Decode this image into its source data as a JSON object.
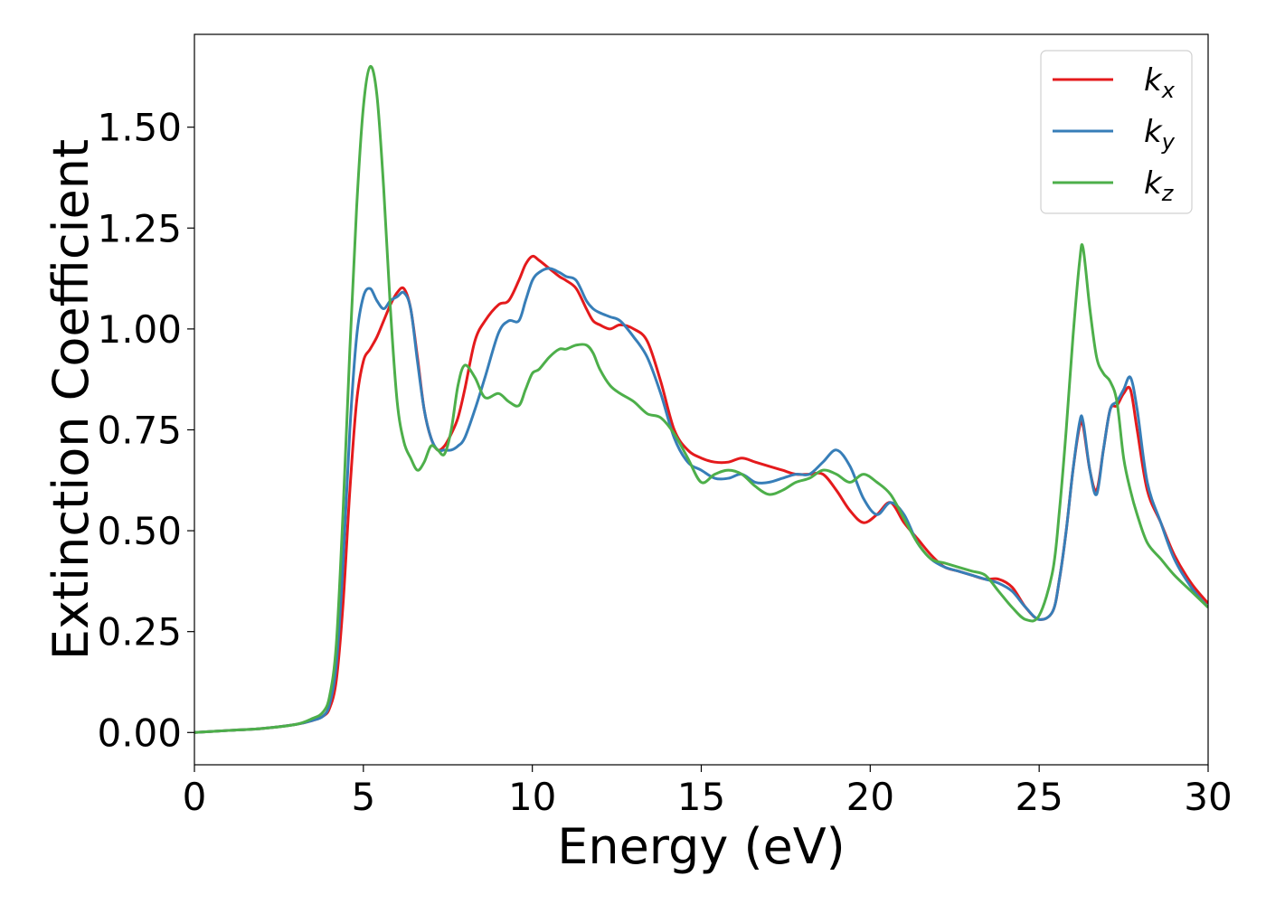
{
  "chart_data": {
    "type": "line",
    "title": "",
    "xlabel": "Energy (eV)",
    "ylabel": "Extinction Coefficient",
    "xlim": [
      0,
      30
    ],
    "ylim": [
      -0.08,
      1.73
    ],
    "xticks": [
      0,
      5,
      10,
      15,
      20,
      25,
      30
    ],
    "xtick_labels": [
      "0",
      "5",
      "10",
      "15",
      "20",
      "25",
      "30"
    ],
    "yticks": [
      0.0,
      0.25,
      0.5,
      0.75,
      1.0,
      1.25,
      1.5
    ],
    "ytick_labels": [
      "0.00",
      "0.25",
      "0.50",
      "0.75",
      "1.00",
      "1.25",
      "1.50"
    ],
    "grid": false,
    "legend_position": "top-right",
    "series": [
      {
        "name": "kx",
        "name_base": "k",
        "name_sub": "x",
        "color": "#e41a1c",
        "x": [
          0,
          1,
          2,
          3,
          3.5,
          3.8,
          4.0,
          4.2,
          4.4,
          4.6,
          4.8,
          5.0,
          5.2,
          5.4,
          5.6,
          5.8,
          6.0,
          6.2,
          6.4,
          6.6,
          6.8,
          7.0,
          7.2,
          7.4,
          7.6,
          7.8,
          8.0,
          8.3,
          8.6,
          9.0,
          9.3,
          9.6,
          9.8,
          10.0,
          10.2,
          10.5,
          10.8,
          11.0,
          11.3,
          11.6,
          11.8,
          12.0,
          12.3,
          12.6,
          13.0,
          13.4,
          13.8,
          14.2,
          14.6,
          15.0,
          15.4,
          15.8,
          16.2,
          16.6,
          17.0,
          17.4,
          17.8,
          18.2,
          18.6,
          19.0,
          19.4,
          19.8,
          20.2,
          20.6,
          21.0,
          21.4,
          21.8,
          22.2,
          22.6,
          23.0,
          23.4,
          23.8,
          24.2,
          24.6,
          25.0,
          25.4,
          25.6,
          25.8,
          26.0,
          26.2,
          26.3,
          26.5,
          26.7,
          26.9,
          27.1,
          27.3,
          27.5,
          27.7,
          27.9,
          28.2,
          28.6,
          29.0,
          29.5,
          30.0
        ],
        "values": [
          0.0,
          0.005,
          0.01,
          0.02,
          0.03,
          0.04,
          0.06,
          0.13,
          0.32,
          0.6,
          0.82,
          0.92,
          0.95,
          0.98,
          1.02,
          1.06,
          1.09,
          1.1,
          1.05,
          0.93,
          0.8,
          0.73,
          0.7,
          0.71,
          0.74,
          0.78,
          0.85,
          0.97,
          1.02,
          1.06,
          1.07,
          1.12,
          1.16,
          1.18,
          1.17,
          1.15,
          1.13,
          1.12,
          1.1,
          1.05,
          1.02,
          1.01,
          1.0,
          1.01,
          1.0,
          0.97,
          0.87,
          0.75,
          0.7,
          0.68,
          0.67,
          0.67,
          0.68,
          0.67,
          0.66,
          0.65,
          0.64,
          0.64,
          0.64,
          0.6,
          0.55,
          0.52,
          0.54,
          0.57,
          0.52,
          0.48,
          0.44,
          0.41,
          0.4,
          0.39,
          0.38,
          0.38,
          0.36,
          0.31,
          0.28,
          0.3,
          0.38,
          0.5,
          0.65,
          0.76,
          0.76,
          0.65,
          0.6,
          0.7,
          0.8,
          0.81,
          0.84,
          0.85,
          0.75,
          0.6,
          0.52,
          0.44,
          0.37,
          0.32
        ]
      },
      {
        "name": "ky",
        "name_base": "k",
        "name_sub": "y",
        "color": "#377eb8",
        "x": [
          0,
          1,
          2,
          3,
          3.5,
          3.8,
          4.0,
          4.2,
          4.4,
          4.6,
          4.8,
          5.0,
          5.2,
          5.4,
          5.6,
          5.8,
          6.0,
          6.2,
          6.4,
          6.6,
          6.8,
          7.0,
          7.2,
          7.4,
          7.6,
          7.8,
          8.0,
          8.3,
          8.6,
          9.0,
          9.3,
          9.6,
          9.8,
          10.0,
          10.2,
          10.5,
          10.8,
          11.0,
          11.3,
          11.6,
          11.8,
          12.0,
          12.3,
          12.6,
          13.0,
          13.4,
          13.8,
          14.2,
          14.6,
          15.0,
          15.4,
          15.8,
          16.2,
          16.6,
          17.0,
          17.4,
          17.8,
          18.2,
          18.6,
          19.0,
          19.4,
          19.8,
          20.2,
          20.6,
          21.0,
          21.4,
          21.8,
          22.2,
          22.6,
          23.0,
          23.4,
          23.8,
          24.2,
          24.6,
          25.0,
          25.4,
          25.6,
          25.8,
          26.0,
          26.2,
          26.3,
          26.5,
          26.7,
          26.9,
          27.1,
          27.3,
          27.5,
          27.7,
          27.9,
          28.2,
          28.6,
          29.0,
          29.5,
          30.0
        ],
        "values": [
          0.0,
          0.005,
          0.01,
          0.02,
          0.03,
          0.04,
          0.07,
          0.17,
          0.42,
          0.75,
          0.98,
          1.08,
          1.1,
          1.07,
          1.05,
          1.07,
          1.08,
          1.09,
          1.05,
          0.92,
          0.8,
          0.73,
          0.7,
          0.7,
          0.7,
          0.71,
          0.73,
          0.8,
          0.88,
          0.99,
          1.02,
          1.02,
          1.07,
          1.12,
          1.14,
          1.15,
          1.14,
          1.13,
          1.12,
          1.07,
          1.05,
          1.04,
          1.03,
          1.02,
          0.98,
          0.93,
          0.84,
          0.73,
          0.67,
          0.65,
          0.63,
          0.63,
          0.64,
          0.62,
          0.62,
          0.63,
          0.64,
          0.64,
          0.67,
          0.7,
          0.66,
          0.58,
          0.54,
          0.57,
          0.54,
          0.47,
          0.43,
          0.41,
          0.4,
          0.39,
          0.38,
          0.37,
          0.35,
          0.31,
          0.28,
          0.3,
          0.38,
          0.5,
          0.65,
          0.77,
          0.77,
          0.65,
          0.59,
          0.7,
          0.8,
          0.82,
          0.85,
          0.88,
          0.8,
          0.62,
          0.52,
          0.43,
          0.36,
          0.31
        ]
      },
      {
        "name": "kz",
        "name_base": "k",
        "name_sub": "z",
        "color": "#4daf4a",
        "x": [
          0,
          1,
          2,
          3,
          3.5,
          3.8,
          4.0,
          4.2,
          4.4,
          4.6,
          4.8,
          5.0,
          5.2,
          5.4,
          5.6,
          5.8,
          6.0,
          6.2,
          6.4,
          6.6,
          6.8,
          7.0,
          7.2,
          7.4,
          7.6,
          7.8,
          8.0,
          8.3,
          8.6,
          9.0,
          9.3,
          9.6,
          9.8,
          10.0,
          10.2,
          10.5,
          10.8,
          11.0,
          11.3,
          11.6,
          11.8,
          12.0,
          12.3,
          12.6,
          13.0,
          13.4,
          13.8,
          14.2,
          14.6,
          15.0,
          15.4,
          15.8,
          16.2,
          16.6,
          17.0,
          17.4,
          17.8,
          18.2,
          18.6,
          19.0,
          19.4,
          19.8,
          20.2,
          20.6,
          21.0,
          21.4,
          21.8,
          22.2,
          22.6,
          23.0,
          23.4,
          23.8,
          24.2,
          24.6,
          25.0,
          25.4,
          25.6,
          25.8,
          26.0,
          26.2,
          26.3,
          26.5,
          26.7,
          26.9,
          27.1,
          27.3,
          27.5,
          27.7,
          27.9,
          28.2,
          28.6,
          29.0,
          29.5,
          30.0
        ],
        "values": [
          0.0,
          0.005,
          0.01,
          0.02,
          0.035,
          0.05,
          0.09,
          0.22,
          0.55,
          0.95,
          1.3,
          1.55,
          1.65,
          1.58,
          1.35,
          1.05,
          0.82,
          0.72,
          0.68,
          0.65,
          0.67,
          0.71,
          0.7,
          0.69,
          0.75,
          0.86,
          0.91,
          0.88,
          0.83,
          0.84,
          0.82,
          0.81,
          0.85,
          0.89,
          0.9,
          0.93,
          0.95,
          0.95,
          0.96,
          0.96,
          0.94,
          0.9,
          0.86,
          0.84,
          0.82,
          0.79,
          0.78,
          0.74,
          0.68,
          0.62,
          0.64,
          0.65,
          0.64,
          0.61,
          0.59,
          0.6,
          0.62,
          0.63,
          0.65,
          0.64,
          0.62,
          0.64,
          0.62,
          0.59,
          0.53,
          0.47,
          0.43,
          0.42,
          0.41,
          0.4,
          0.39,
          0.35,
          0.31,
          0.28,
          0.29,
          0.4,
          0.55,
          0.75,
          0.98,
          1.17,
          1.2,
          1.05,
          0.93,
          0.89,
          0.87,
          0.82,
          0.68,
          0.6,
          0.54,
          0.47,
          0.43,
          0.39,
          0.35,
          0.31
        ]
      }
    ]
  }
}
